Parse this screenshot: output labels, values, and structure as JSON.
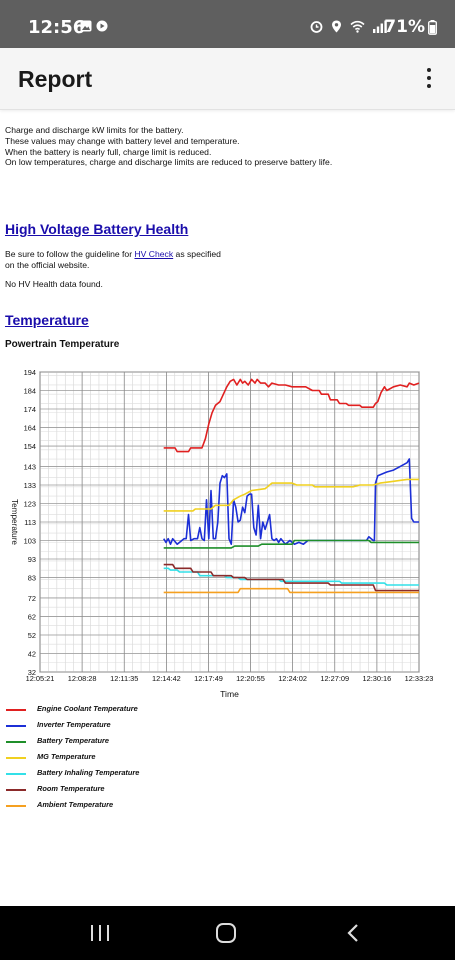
{
  "status_bar": {
    "time": "12:56",
    "battery": "71%"
  },
  "app_bar": {
    "title": "Report"
  },
  "description": [
    "Charge and discharge kW limits for the battery.",
    "These values may change with battery level and temperature.",
    "When the battery is nearly full, charge limit is reduced.",
    "On low temperatures, charge and discharge limits are reduced to preserve battery life."
  ],
  "hv_section": {
    "title": "High Voltage Battery Health",
    "guide_prefix": "Be sure to follow the guideline for ",
    "guide_link": "HV Check",
    "guide_suffix": " as specified on the official website.",
    "no_data": "No HV Health data found."
  },
  "temp_section": {
    "title": "Temperature",
    "subtitle": "Powertrain Temperature"
  },
  "chart_data": {
    "type": "line",
    "xlabel": "Time",
    "ylabel": "Temperature",
    "ylim": [
      32,
      194
    ],
    "xlim": [
      "12:05:21",
      "12:33:23"
    ],
    "x_tick_labels": [
      "12:05:21",
      "12:08:28",
      "12:11:35",
      "12:14:42",
      "12:17:49",
      "12:20:55",
      "12:24:02",
      "12:27:09",
      "12:30:16",
      "12:33:23"
    ],
    "y_tick_labels": [
      "194",
      "184",
      "174",
      "164",
      "154",
      "143",
      "133",
      "123",
      "113",
      "103",
      "93",
      "83",
      "72",
      "62",
      "52",
      "42",
      "32"
    ],
    "grid": true,
    "legend_position": "bottom",
    "series": [
      {
        "name": "Engine Coolant Temperature",
        "color": "#e02020",
        "points": [
          [
            "12:14:30",
            153
          ],
          [
            "12:15:20",
            153
          ],
          [
            "12:15:30",
            151
          ],
          [
            "12:16:20",
            151
          ],
          [
            "12:16:30",
            153
          ],
          [
            "12:17:20",
            153
          ],
          [
            "12:17:35",
            158
          ],
          [
            "12:17:50",
            166
          ],
          [
            "12:18:05",
            172
          ],
          [
            "12:18:20",
            176
          ],
          [
            "12:18:40",
            178
          ],
          [
            "12:18:55",
            182
          ],
          [
            "12:19:10",
            186
          ],
          [
            "12:19:25",
            189
          ],
          [
            "12:19:40",
            190
          ],
          [
            "12:19:55",
            187
          ],
          [
            "12:20:10",
            190
          ],
          [
            "12:20:20",
            188
          ],
          [
            "12:20:30",
            189
          ],
          [
            "12:20:45",
            187
          ],
          [
            "12:21:00",
            190
          ],
          [
            "12:21:15",
            188
          ],
          [
            "12:21:25",
            190
          ],
          [
            "12:21:40",
            188
          ],
          [
            "12:22:00",
            188
          ],
          [
            "12:22:15",
            186
          ],
          [
            "12:22:30",
            188
          ],
          [
            "12:23:00",
            187
          ],
          [
            "12:23:30",
            187
          ],
          [
            "12:24:00",
            186
          ],
          [
            "12:25:00",
            186
          ],
          [
            "12:25:30",
            184
          ],
          [
            "12:26:00",
            184
          ],
          [
            "12:26:10",
            182
          ],
          [
            "12:26:40",
            182
          ],
          [
            "12:26:50",
            179
          ],
          [
            "12:27:20",
            179
          ],
          [
            "12:27:30",
            177
          ],
          [
            "12:28:00",
            177
          ],
          [
            "12:28:10",
            176
          ],
          [
            "12:29:00",
            176
          ],
          [
            "12:29:10",
            175
          ],
          [
            "12:30:00",
            175
          ],
          [
            "12:30:10",
            177
          ],
          [
            "12:30:20",
            178
          ],
          [
            "12:30:35",
            183
          ],
          [
            "12:30:50",
            186
          ],
          [
            "12:31:00",
            184
          ],
          [
            "12:31:30",
            186
          ],
          [
            "12:32:00",
            187
          ],
          [
            "12:32:30",
            186
          ],
          [
            "12:32:40",
            188
          ],
          [
            "12:33:00",
            187
          ],
          [
            "12:33:23",
            188
          ]
        ]
      },
      {
        "name": "Inverter Temperature",
        "color": "#1c2fd6",
        "points": [
          [
            "12:14:30",
            104
          ],
          [
            "12:14:40",
            102
          ],
          [
            "12:14:50",
            104
          ],
          [
            "12:15:00",
            101
          ],
          [
            "12:15:10",
            104
          ],
          [
            "12:15:30",
            101
          ],
          [
            "12:16:00",
            104
          ],
          [
            "12:16:10",
            104
          ],
          [
            "12:16:20",
            117
          ],
          [
            "12:16:30",
            103
          ],
          [
            "12:16:45",
            104
          ],
          [
            "12:17:00",
            104
          ],
          [
            "12:17:10",
            110
          ],
          [
            "12:17:20",
            104
          ],
          [
            "12:17:30",
            103
          ],
          [
            "12:17:40",
            125
          ],
          [
            "12:17:50",
            104
          ],
          [
            "12:18:00",
            130
          ],
          [
            "12:18:10",
            104
          ],
          [
            "12:18:20",
            104
          ],
          [
            "12:18:30",
            113
          ],
          [
            "12:18:40",
            134
          ],
          [
            "12:18:50",
            138
          ],
          [
            "12:19:00",
            137
          ],
          [
            "12:19:10",
            139
          ],
          [
            "12:19:20",
            104
          ],
          [
            "12:19:30",
            101
          ],
          [
            "12:19:40",
            125
          ],
          [
            "12:19:50",
            121
          ],
          [
            "12:20:00",
            113
          ],
          [
            "12:20:10",
            114
          ],
          [
            "12:20:20",
            121
          ],
          [
            "12:20:30",
            118
          ],
          [
            "12:20:40",
            127
          ],
          [
            "12:20:50",
            128
          ],
          [
            "12:21:00",
            128
          ],
          [
            "12:21:10",
            110
          ],
          [
            "12:21:20",
            106
          ],
          [
            "12:21:30",
            122
          ],
          [
            "12:21:40",
            104
          ],
          [
            "12:21:50",
            113
          ],
          [
            "12:22:00",
            109
          ],
          [
            "12:22:10",
            113
          ],
          [
            "12:22:20",
            117
          ],
          [
            "12:22:30",
            104
          ],
          [
            "12:22:40",
            103
          ],
          [
            "12:22:50",
            104
          ],
          [
            "12:23:00",
            102
          ],
          [
            "12:23:10",
            104
          ],
          [
            "12:23:30",
            101
          ],
          [
            "12:23:50",
            103
          ],
          [
            "12:24:10",
            101
          ],
          [
            "12:24:30",
            102
          ],
          [
            "12:24:50",
            101
          ],
          [
            "12:25:10",
            103
          ],
          [
            "12:25:30",
            103
          ],
          [
            "12:26:00",
            103
          ],
          [
            "12:27:00",
            103
          ],
          [
            "12:28:00",
            103
          ],
          [
            "12:29:00",
            103
          ],
          [
            "12:29:30",
            103
          ],
          [
            "12:29:40",
            105
          ],
          [
            "12:30:00",
            103
          ],
          [
            "12:30:05",
            103
          ],
          [
            "12:30:10",
            134
          ],
          [
            "12:30:20",
            138
          ],
          [
            "12:30:40",
            139
          ],
          [
            "12:31:00",
            140
          ],
          [
            "12:31:30",
            141
          ],
          [
            "12:32:00",
            143
          ],
          [
            "12:32:30",
            145
          ],
          [
            "12:32:40",
            147
          ],
          [
            "12:32:50",
            115
          ],
          [
            "12:33:00",
            113
          ],
          [
            "12:33:23",
            113
          ]
        ]
      },
      {
        "name": "Battery Temperature",
        "color": "#1f8f2a",
        "points": [
          [
            "12:14:30",
            99
          ],
          [
            "12:19:30",
            99
          ],
          [
            "12:19:45",
            100
          ],
          [
            "12:21:30",
            100
          ],
          [
            "12:21:45",
            101
          ],
          [
            "12:24:00",
            101
          ],
          [
            "12:24:10",
            103
          ],
          [
            "12:29:40",
            103
          ],
          [
            "12:29:50",
            102
          ],
          [
            "12:33:23",
            102
          ]
        ]
      },
      {
        "name": "MG Temperature",
        "color": "#f0d020",
        "points": [
          [
            "12:14:30",
            119
          ],
          [
            "12:16:40",
            119
          ],
          [
            "12:16:50",
            120
          ],
          [
            "12:18:00",
            120
          ],
          [
            "12:18:20",
            122
          ],
          [
            "12:19:20",
            122
          ],
          [
            "12:19:40",
            125
          ],
          [
            "12:20:10",
            127
          ],
          [
            "12:20:30",
            128
          ],
          [
            "12:21:00",
            130
          ],
          [
            "12:22:00",
            131
          ],
          [
            "12:22:30",
            134
          ],
          [
            "12:24:00",
            134
          ],
          [
            "12:24:20",
            133
          ],
          [
            "12:25:30",
            133
          ],
          [
            "12:25:40",
            132
          ],
          [
            "12:28:30",
            132
          ],
          [
            "12:29:00",
            133
          ],
          [
            "12:30:00",
            133
          ],
          [
            "12:30:30",
            134
          ],
          [
            "12:31:30",
            135
          ],
          [
            "12:32:30",
            136
          ],
          [
            "12:33:23",
            136
          ]
        ]
      },
      {
        "name": "Battery Inhaling Temperature",
        "color": "#33e0e8",
        "points": [
          [
            "12:14:30",
            88
          ],
          [
            "12:14:50",
            88
          ],
          [
            "12:15:00",
            87
          ],
          [
            "12:15:30",
            87
          ],
          [
            "12:15:40",
            86
          ],
          [
            "12:17:00",
            86
          ],
          [
            "12:17:10",
            84
          ],
          [
            "12:19:00",
            84
          ],
          [
            "12:19:10",
            83
          ],
          [
            "12:20:00",
            83
          ],
          [
            "12:20:10",
            82
          ],
          [
            "12:23:00",
            82
          ],
          [
            "12:23:10",
            81
          ],
          [
            "12:27:30",
            81
          ],
          [
            "12:27:40",
            80
          ],
          [
            "12:30:50",
            80
          ],
          [
            "12:31:00",
            79
          ],
          [
            "12:33:23",
            79
          ]
        ]
      },
      {
        "name": "Room Temperature",
        "color": "#8b2a2a",
        "points": [
          [
            "12:14:30",
            90
          ],
          [
            "12:15:10",
            90
          ],
          [
            "12:15:20",
            88
          ],
          [
            "12:16:30",
            88
          ],
          [
            "12:16:40",
            86
          ],
          [
            "12:18:00",
            86
          ],
          [
            "12:18:10",
            84
          ],
          [
            "12:19:30",
            84
          ],
          [
            "12:19:40",
            83
          ],
          [
            "12:20:30",
            83
          ],
          [
            "12:20:40",
            82
          ],
          [
            "12:23:20",
            82
          ],
          [
            "12:23:30",
            80
          ],
          [
            "12:26:40",
            80
          ],
          [
            "12:26:50",
            79
          ],
          [
            "12:30:00",
            79
          ],
          [
            "12:30:10",
            76
          ],
          [
            "12:33:23",
            76
          ]
        ]
      },
      {
        "name": "Ambient Temperature",
        "color": "#f5a020",
        "points": [
          [
            "12:14:30",
            75
          ],
          [
            "12:20:00",
            75
          ],
          [
            "12:20:10",
            77
          ],
          [
            "12:23:40",
            77
          ],
          [
            "12:23:50",
            75
          ],
          [
            "12:33:23",
            75
          ]
        ]
      }
    ]
  },
  "nav_bar": {
    "recent": "recent-apps",
    "home": "home",
    "back": "back"
  }
}
